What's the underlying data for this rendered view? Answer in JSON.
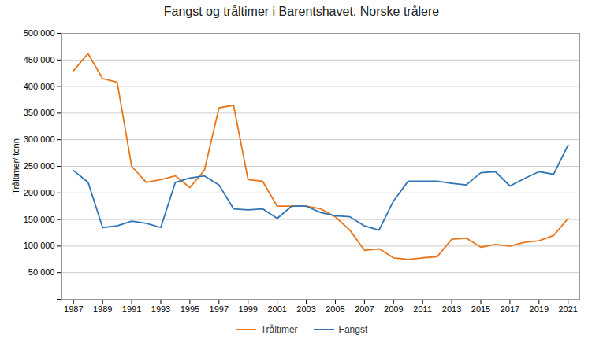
{
  "chart_data": {
    "type": "line",
    "title": "Fangst og tråltimer i Barentshavet. Norske trålere",
    "ylabel": "Tråltimer/ tonn",
    "x": [
      1987,
      1988,
      1989,
      1990,
      1991,
      1992,
      1993,
      1994,
      1995,
      1996,
      1997,
      1998,
      1999,
      2000,
      2001,
      2002,
      2003,
      2004,
      2005,
      2006,
      2007,
      2008,
      2009,
      2010,
      2011,
      2012,
      2013,
      2014,
      2015,
      2016,
      2017,
      2018,
      2019,
      2020,
      2021
    ],
    "series": [
      {
        "name": "Tråltimer",
        "color": "#E8761A",
        "values": [
          430000,
          462000,
          415000,
          408000,
          250000,
          220000,
          225000,
          232000,
          210000,
          243000,
          360000,
          365000,
          225000,
          222000,
          175000,
          175000,
          175000,
          170000,
          155000,
          130000,
          92000,
          95000,
          78000,
          75000,
          78000,
          80000,
          113000,
          115000,
          98000,
          103000,
          100000,
          107000,
          110000,
          120000,
          152000
        ]
      },
      {
        "name": "Fangst",
        "color": "#2E75B6",
        "values": [
          242000,
          220000,
          135000,
          138000,
          147000,
          143000,
          135000,
          220000,
          228000,
          232000,
          215000,
          170000,
          168000,
          170000,
          152000,
          175000,
          175000,
          163000,
          157000,
          155000,
          138000,
          130000,
          185000,
          222000,
          222000,
          222000,
          218000,
          215000,
          238000,
          240000,
          213000,
          227000,
          240000,
          235000,
          290000
        ]
      }
    ],
    "xlim": [
      1986.2,
      2021.8
    ],
    "xticks": [
      1987,
      1989,
      1991,
      1993,
      1995,
      1997,
      1999,
      2001,
      2003,
      2005,
      2007,
      2009,
      2011,
      2013,
      2015,
      2017,
      2019,
      2021
    ],
    "ylim": [
      0,
      500000
    ],
    "yticks": [
      {
        "value": 0,
        "label": "-"
      },
      {
        "value": 50000,
        "label": "50 000"
      },
      {
        "value": 100000,
        "label": "100 000"
      },
      {
        "value": 150000,
        "label": "150 000"
      },
      {
        "value": 200000,
        "label": "200 000"
      },
      {
        "value": 250000,
        "label": "250 000"
      },
      {
        "value": 300000,
        "label": "300 000"
      },
      {
        "value": 350000,
        "label": "350 000"
      },
      {
        "value": 400000,
        "label": "400 000"
      },
      {
        "value": 450000,
        "label": "450 000"
      },
      {
        "value": 500000,
        "label": "500 000"
      }
    ],
    "grid": true,
    "legend": "bottom"
  }
}
